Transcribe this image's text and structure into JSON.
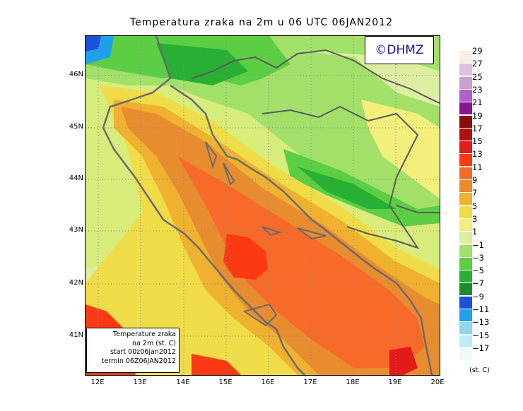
{
  "title": "Temperatura zraka na 2m u 06 UTC 06JAN2012",
  "copyright": "©DHMZ",
  "info_box": {
    "line1": "Temperature zraka",
    "line2": "na 2m (st. C)",
    "line3": "start 00z06jan2012",
    "line4": "termin 06Z06JAN2012"
  },
  "lat_labels": [
    "46N",
    "45N",
    "44N",
    "43N",
    "42N",
    "41N"
  ],
  "lon_labels": [
    "12E",
    "13E",
    "14E",
    "15E",
    "16E",
    "17E",
    "18E",
    "19E",
    "20E"
  ],
  "legend": {
    "units": "(st. C)",
    "labels": [
      "29",
      "27",
      "25",
      "23",
      "21",
      "19",
      "17",
      "15",
      "13",
      "11",
      "9",
      "7",
      "5",
      "3",
      "1",
      "−1",
      "−3",
      "−5",
      "−7",
      "−9",
      "−11",
      "−13",
      "−15",
      "−17"
    ],
    "colors": [
      "#fbeee0",
      "#dcc2dc",
      "#cc9fd2",
      "#b060c8",
      "#8a1490",
      "#8a0c0c",
      "#b01010",
      "#e21a1a",
      "#fb3a14",
      "#f86a2a",
      "#e88c30",
      "#f0b030",
      "#f0dc48",
      "#f3ef7c",
      "#dcefa0",
      "#a2e06a",
      "#5cce44",
      "#28b034",
      "#1a8c2a",
      "#1c50d8",
      "#20a0ec",
      "#8ed6ec",
      "#c2ecf4",
      "#eefaf8"
    ]
  },
  "colors": {
    "coastline": "#6a6a6a",
    "border": "#5a5a5a",
    "grid": "#888888",
    "copyright_text": "#1515a0"
  }
}
